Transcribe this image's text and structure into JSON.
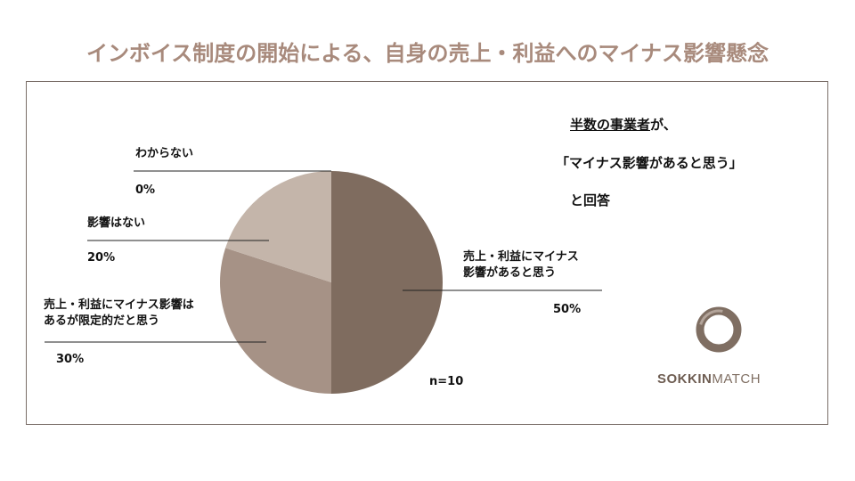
{
  "title": "インボイス制度の開始による、自身の売上・利益へのマイナス影響懸念",
  "callout": {
    "line1_underlined": "半数の事業者",
    "line1_rest": "が、",
    "line2": "「マイナス影響があると思う」",
    "line3": "と回答"
  },
  "chart_data": {
    "type": "pie",
    "slices": [
      {
        "label": "売上・利益にマイナス\n影響があると思う",
        "value": 50,
        "value_text": "50%",
        "color": "#7f6c5f"
      },
      {
        "label": "売上・利益にマイナス影響は\nあるが限定的だと思う",
        "value": 30,
        "value_text": "30%",
        "color": "#a69286"
      },
      {
        "label": "影響はない",
        "value": 20,
        "value_text": "20%",
        "color": "#c4b5aa"
      },
      {
        "label": "わからない",
        "value": 0,
        "value_text": "0%",
        "color": "#d9d0ca"
      }
    ],
    "n_label": "n=10"
  },
  "logo": {
    "bold": "SOKKIN",
    "light": "MATCH",
    "ring_color": "#7f6e62"
  }
}
